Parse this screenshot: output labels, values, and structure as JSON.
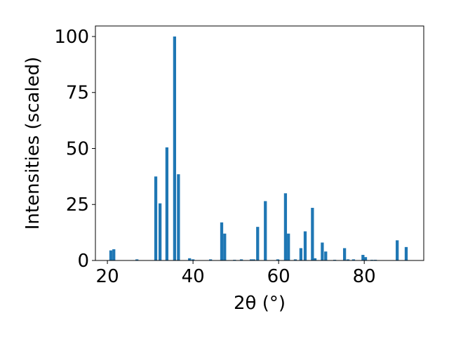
{
  "chart_data": {
    "type": "bar",
    "color": "#1f77b4",
    "x_label": "2θ (°)",
    "y_label": "Intensities (scaled)",
    "x": [
      20.8,
      21.5,
      26.9,
      31.3,
      32.3,
      33.9,
      35.7,
      36.6,
      39.2,
      40.0,
      44.1,
      46.7,
      47.4,
      49.7,
      51.3,
      53.6,
      54.2,
      55.1,
      56.9,
      59.8,
      61.6,
      62.3,
      63.9,
      65.2,
      66.2,
      67.9,
      68.5,
      70.2,
      71.0,
      73.1,
      75.4,
      76.2,
      77.5,
      79.7,
      80.3,
      81.8,
      82.6,
      87.7,
      89.8
    ],
    "values": [
      4.5,
      5,
      0.5,
      37.5,
      25.5,
      50.5,
      100,
      38.5,
      1,
      0.5,
      0.5,
      17,
      12,
      0.3,
      0.5,
      0.5,
      0.5,
      15,
      26.5,
      0.5,
      30,
      12,
      0.5,
      5.5,
      13,
      23.5,
      1,
      8,
      4,
      0.3,
      5.5,
      0.5,
      0.5,
      2.5,
      1.5,
      0.3,
      0.3,
      9,
      6
    ],
    "xlim": [
      17.2,
      93.9
    ],
    "ylim": [
      0,
      104.7
    ],
    "xticks": [
      20,
      40,
      60,
      80
    ],
    "yticks": [
      0,
      25,
      50,
      75,
      100
    ]
  }
}
